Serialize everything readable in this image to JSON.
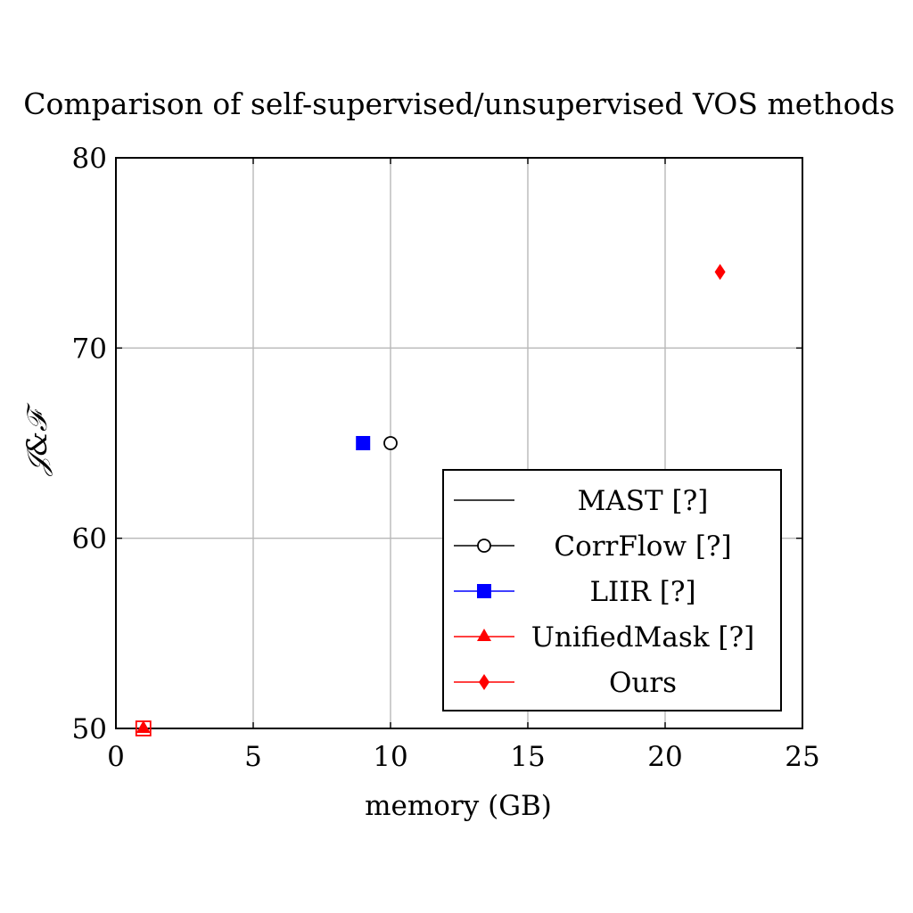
{
  "chart_data": {
    "type": "scatter",
    "title": "Comparison of self-supervised/unsupervised VOS methods",
    "xlabel": "memory (GB)",
    "ylabel": "𝒥&ℱ",
    "xlim": [
      0,
      25
    ],
    "ylim": [
      50,
      80
    ],
    "xticks": [
      0,
      5,
      10,
      15,
      20,
      25
    ],
    "yticks": [
      50,
      60,
      70,
      80
    ],
    "grid": true,
    "legend_position": "bottom-right",
    "series": [
      {
        "name": "MAST [?]",
        "color": "#000000",
        "marker": "none",
        "x": [
          1
        ],
        "y": [
          50
        ]
      },
      {
        "name": "CorrFlow [?]",
        "color": "#000000",
        "marker": "circle-open",
        "x": [
          10
        ],
        "y": [
          65
        ]
      },
      {
        "name": "LIIR [?]",
        "color": "#0000ff",
        "marker": "square",
        "x": [
          9
        ],
        "y": [
          65
        ]
      },
      {
        "name": "UnifiedMask [?]",
        "color": "#ff0000",
        "marker": "triangle",
        "x": [
          1
        ],
        "y": [
          50
        ]
      },
      {
        "name": "Ours",
        "color": "#ff0000",
        "marker": "diamond",
        "x": [
          22
        ],
        "y": [
          74
        ]
      }
    ],
    "extra_marks": [
      {
        "marker": "square-open",
        "color": "#ff0000",
        "x": 1,
        "y": 50
      }
    ]
  }
}
